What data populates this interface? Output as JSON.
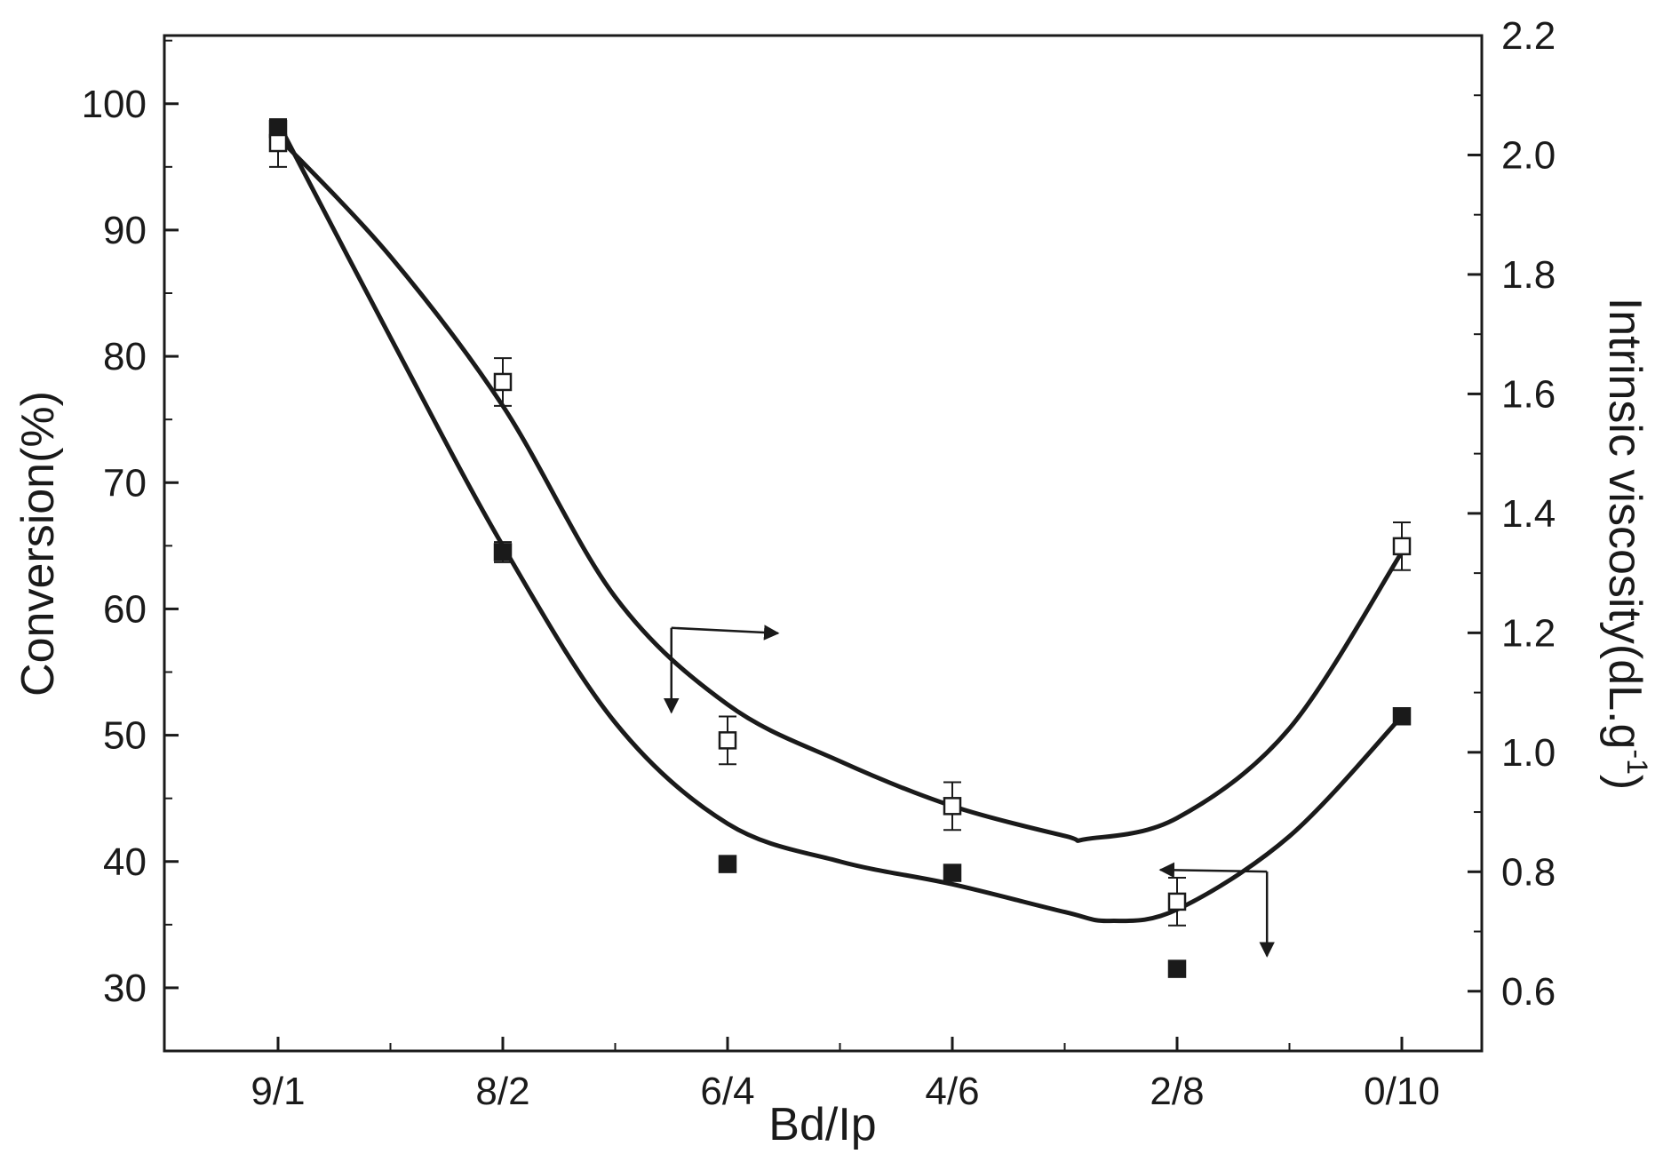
{
  "chart_data": {
    "type": "scatter",
    "xlabel": "Bd/Ip",
    "categories": [
      "9/1",
      "8/2",
      "6/4",
      "4/6",
      "2/8",
      "0/10"
    ],
    "y_left": {
      "label": "Conversion(%)",
      "ticks": [
        "30",
        "40",
        "50",
        "60",
        "70",
        "80",
        "90",
        "100"
      ],
      "ylim": [
        25,
        105.4
      ]
    },
    "y_right": {
      "label_main": "Intrinsic viscosity(dL.g",
      "label_sup": "-1",
      "label_end": ")",
      "ticks": [
        "0.6",
        "0.8",
        "1.0",
        "1.2",
        "1.4",
        "1.6",
        "1.8",
        "2.0",
        "2.2"
      ],
      "ylim": [
        0.5,
        2.2
      ]
    },
    "series": [
      {
        "marker": "filled-square",
        "axis": "left",
        "values": [
          98.0,
          64.5,
          39.8,
          39.1,
          31.5,
          51.5
        ],
        "errors": [
          0.7,
          0.8,
          0.6,
          0.6,
          0.6,
          0.6
        ]
      },
      {
        "marker": "open-square",
        "axis": "right",
        "values": [
          2.02,
          1.62,
          1.02,
          0.91,
          0.75,
          1.345
        ],
        "errors": [
          0.04,
          0.04,
          0.04,
          0.04,
          0.04,
          0.04
        ]
      }
    ],
    "fit_curves": [
      {
        "of": "filled-square",
        "axis": "left",
        "points": [
          [
            0,
            98.5
          ],
          [
            0.5,
            81.5
          ],
          [
            1,
            65.0
          ],
          [
            1.5,
            51.0
          ],
          [
            2,
            43.0
          ],
          [
            2.5,
            40.0
          ],
          [
            3,
            38.2
          ],
          [
            3.5,
            36.0
          ],
          [
            3.7,
            35.3
          ],
          [
            4,
            36.2
          ],
          [
            4.5,
            42.0
          ],
          [
            5,
            51.5
          ]
        ]
      },
      {
        "of": "open-square",
        "axis": "right",
        "points": [
          [
            0,
            2.03
          ],
          [
            0.5,
            1.83
          ],
          [
            1,
            1.58
          ],
          [
            1.5,
            1.26
          ],
          [
            2,
            1.08
          ],
          [
            2.5,
            0.985
          ],
          [
            3,
            0.91
          ],
          [
            3.5,
            0.86
          ],
          [
            3.6,
            0.855
          ],
          [
            4,
            0.89
          ],
          [
            4.5,
            1.04
          ],
          [
            5,
            1.335
          ]
        ]
      }
    ],
    "annotations": [
      {
        "kind": "axis-indicator-arrows",
        "for": "open-square",
        "points_to": "right-axis",
        "at_x": 1.75,
        "at_y_left": 58.5
      },
      {
        "kind": "axis-indicator-arrows",
        "for": "filled-square",
        "points_to": "left-axis",
        "at_x": 4.4,
        "at_y_left": 39.2
      }
    ],
    "grid": false,
    "legend": "none"
  }
}
